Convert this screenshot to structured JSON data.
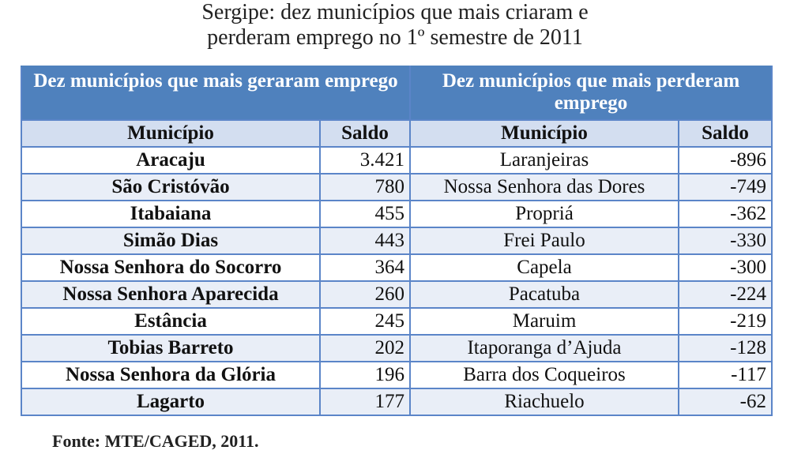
{
  "title": {
    "line1": "Sergipe: dez municípios que mais criaram e",
    "line2": "perderam emprego no 1º semestre de 2011"
  },
  "table": {
    "left_header": "Dez municípios que mais geraram emprego",
    "right_header": "Dez municípios que mais perderam emprego",
    "col_municipio": "Município",
    "col_saldo": "Saldo",
    "rows": [
      {
        "gen_name": "Aracaju",
        "gen_saldo": "3.421",
        "lost_name": "Laranjeiras",
        "lost_saldo": "-896"
      },
      {
        "gen_name": "São Cristóvão",
        "gen_saldo": "780",
        "lost_name": "Nossa Senhora das Dores",
        "lost_saldo": "-749"
      },
      {
        "gen_name": "Itabaiana",
        "gen_saldo": "455",
        "lost_name": "Propriá",
        "lost_saldo": "-362"
      },
      {
        "gen_name": "Simão Dias",
        "gen_saldo": "443",
        "lost_name": "Frei Paulo",
        "lost_saldo": "-330"
      },
      {
        "gen_name": "Nossa Senhora do Socorro",
        "gen_saldo": "364",
        "lost_name": "Capela",
        "lost_saldo": "-300"
      },
      {
        "gen_name": "Nossa Senhora Aparecida",
        "gen_saldo": "260",
        "lost_name": "Pacatuba",
        "lost_saldo": "-224"
      },
      {
        "gen_name": "Estância",
        "gen_saldo": "245",
        "lost_name": "Maruim",
        "lost_saldo": "-219"
      },
      {
        "gen_name": "Tobias Barreto",
        "gen_saldo": "202",
        "lost_name": "Itaporanga d’Ajuda",
        "lost_saldo": "-128"
      },
      {
        "gen_name": "Nossa Senhora da Glória",
        "gen_saldo": "196",
        "lost_name": "Barra dos Coqueiros",
        "lost_saldo": "-117"
      },
      {
        "gen_name": "Lagarto",
        "gen_saldo": "177",
        "lost_name": "Riachuelo",
        "lost_saldo": "-62"
      }
    ]
  },
  "source": "Fonte: MTE/CAGED, 2011.",
  "colors": {
    "header_bg": "#4f81bd",
    "subheader_bg": "#d3def0",
    "alt_row_bg": "#e9eef7",
    "border": "#5b85c8"
  }
}
